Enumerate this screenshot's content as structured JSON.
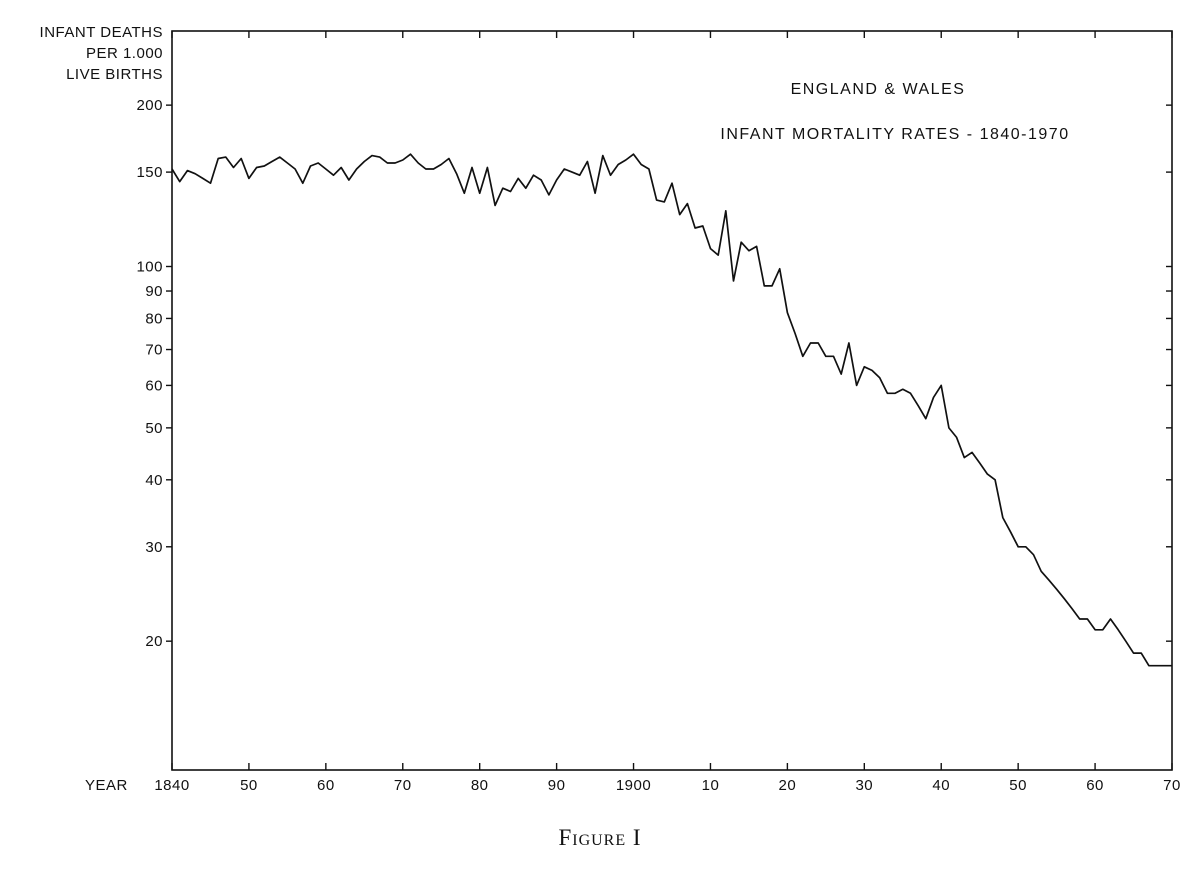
{
  "chart_data": {
    "type": "line",
    "title": "ENGLAND & WALES",
    "subtitle": "INFANT MORTALITY RATES - 1840-1970",
    "ylabel_lines": [
      "INFANT DEATHS",
      "PER 1.000",
      "LIVE BIRTHS"
    ],
    "xlabel": "YEAR",
    "y_scale": "log",
    "xlim": [
      1840,
      1970
    ],
    "ylim": [
      11.5,
      275
    ],
    "grid": false,
    "x_ticks": [
      {
        "value": 1840,
        "label": "1840"
      },
      {
        "value": 1850,
        "label": "50"
      },
      {
        "value": 1860,
        "label": "60"
      },
      {
        "value": 1870,
        "label": "70"
      },
      {
        "value": 1880,
        "label": "80"
      },
      {
        "value": 1890,
        "label": "90"
      },
      {
        "value": 1900,
        "label": "1900"
      },
      {
        "value": 1910,
        "label": "10"
      },
      {
        "value": 1920,
        "label": "20"
      },
      {
        "value": 1930,
        "label": "30"
      },
      {
        "value": 1940,
        "label": "40"
      },
      {
        "value": 1950,
        "label": "50"
      },
      {
        "value": 1960,
        "label": "60"
      },
      {
        "value": 1970,
        "label": "70"
      }
    ],
    "y_ticks": [
      {
        "value": 200,
        "label": "200"
      },
      {
        "value": 150,
        "label": "150"
      },
      {
        "value": 100,
        "label": "100"
      },
      {
        "value": 90,
        "label": "90"
      },
      {
        "value": 80,
        "label": "80"
      },
      {
        "value": 70,
        "label": "70"
      },
      {
        "value": 60,
        "label": "60"
      },
      {
        "value": 50,
        "label": "50"
      },
      {
        "value": 40,
        "label": "40"
      },
      {
        "value": 30,
        "label": "30"
      },
      {
        "value": 20,
        "label": "20"
      }
    ],
    "series": [
      {
        "x": [
          1840,
          1841,
          1842,
          1843,
          1844,
          1845,
          1846,
          1847,
          1848,
          1849,
          1850,
          1851,
          1852,
          1853,
          1854,
          1855,
          1856,
          1857,
          1858,
          1859,
          1860,
          1861,
          1862,
          1863,
          1864,
          1865,
          1866,
          1867,
          1868,
          1869,
          1870,
          1871,
          1872,
          1873,
          1874,
          1875,
          1876,
          1877,
          1878,
          1879,
          1880,
          1881,
          1882,
          1883,
          1884,
          1885,
          1886,
          1887,
          1888,
          1889,
          1890,
          1891,
          1892,
          1893,
          1894,
          1895,
          1896,
          1897,
          1898,
          1899,
          1900,
          1901,
          1902,
          1903,
          1904,
          1905,
          1906,
          1907,
          1908,
          1909,
          1910,
          1911,
          1912,
          1913,
          1914,
          1915,
          1916,
          1917,
          1918,
          1919,
          1920,
          1921,
          1922,
          1923,
          1924,
          1925,
          1926,
          1927,
          1928,
          1929,
          1930,
          1931,
          1932,
          1933,
          1934,
          1935,
          1936,
          1937,
          1938,
          1939,
          1940,
          1941,
          1942,
          1943,
          1944,
          1945,
          1946,
          1947,
          1948,
          1949,
          1950,
          1951,
          1952,
          1953,
          1954,
          1955,
          1956,
          1957,
          1958,
          1959,
          1960,
          1961,
          1962,
          1963,
          1964,
          1965,
          1966,
          1967,
          1968,
          1969,
          1970
        ],
        "y": [
          152,
          144,
          151,
          149,
          146,
          143,
          159,
          160,
          153,
          159,
          146,
          153,
          154,
          157,
          160,
          156,
          152,
          143,
          154,
          156,
          152,
          148,
          153,
          145,
          152,
          157,
          161,
          160,
          156,
          156,
          158,
          162,
          156,
          152,
          152,
          155,
          159,
          149,
          137,
          153,
          137,
          153,
          130,
          140,
          138,
          146,
          140,
          148,
          145,
          136,
          145,
          152,
          150,
          148,
          157,
          137,
          161,
          148,
          155,
          158,
          162,
          155,
          152,
          133,
          132,
          143,
          125,
          131,
          118,
          119,
          108,
          105,
          127,
          94,
          111,
          107,
          109,
          92,
          92,
          99,
          82,
          75,
          68,
          72,
          72,
          68,
          68,
          63,
          72,
          60,
          65,
          64,
          62,
          58,
          58,
          59,
          58,
          55,
          52,
          57,
          60,
          50,
          48,
          44,
          45,
          43,
          41,
          40,
          34,
          32,
          30,
          30,
          29,
          27,
          26,
          25,
          24,
          23,
          22,
          22,
          21,
          21,
          22,
          21,
          20,
          19,
          19,
          18,
          18,
          18,
          18
        ]
      }
    ]
  },
  "figure_caption": "Figure I"
}
